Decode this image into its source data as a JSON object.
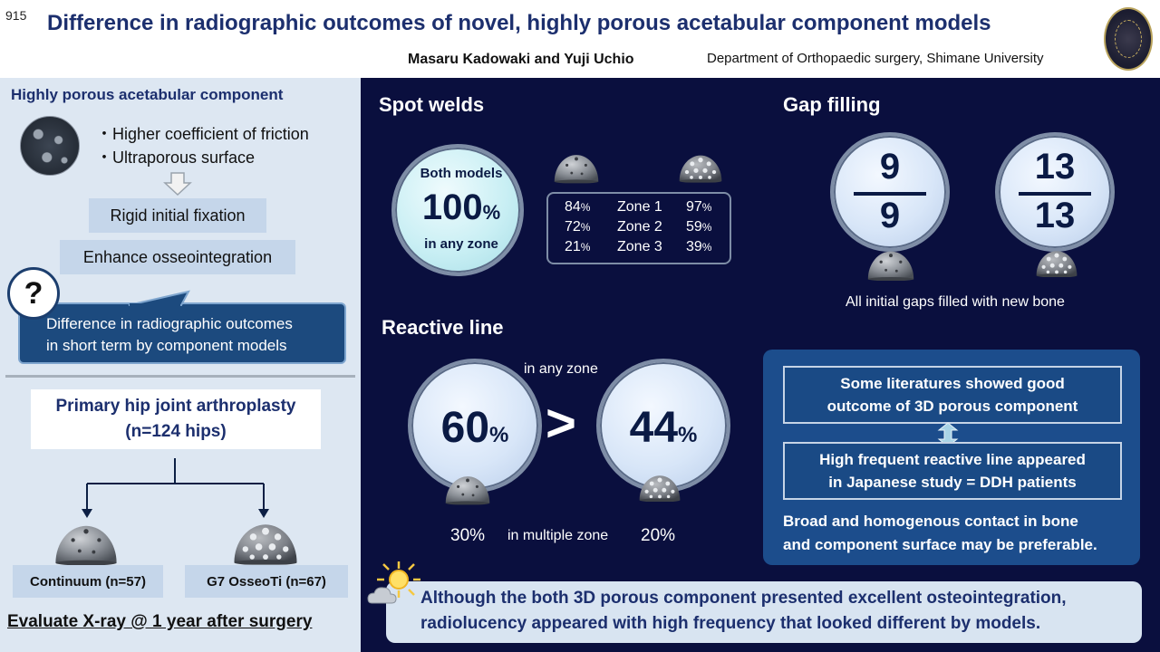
{
  "header": {
    "poster_number": "915",
    "title": "Difference in radiographic outcomes of novel, highly porous acetabular component models",
    "authors": "Masaru Kadowaki and Yuji Uchio",
    "affiliation": "Department of Orthopaedic surgery, Shimane University"
  },
  "left": {
    "heading": "Highly porous acetabular component",
    "features": [
      "・Higher coefficient of friction",
      "・Ultraporous surface"
    ],
    "fixation": "Rigid initial fixation",
    "osseo": "Enhance osseointegration",
    "question_mark": "?",
    "question_lines": [
      "Difference in radiographic outcomes",
      "in short term by component models"
    ],
    "study_lines": [
      "Primary hip joint arthroplasty",
      "(n=124 hips)"
    ],
    "groups": [
      "Continuum (n=57)",
      "G7 OsseoTi (n=67)"
    ],
    "evaluate": "Evaluate X-ray @ 1 year after surgery"
  },
  "spot_welds": {
    "heading": "Spot welds",
    "bubble_top": "Both models",
    "bubble_value": "100",
    "bubble_unit": "%",
    "bubble_bottom": "in any zone",
    "pct_unit": "%",
    "rows": [
      {
        "left": "84",
        "zone": "Zone 1",
        "right": "97"
      },
      {
        "left": "72",
        "zone": "Zone 2",
        "right": "59"
      },
      {
        "left": "21",
        "zone": "Zone 3",
        "right": "39"
      }
    ]
  },
  "gap_filling": {
    "heading": "Gap filling",
    "fractions": [
      {
        "num": "9",
        "den": "9"
      },
      {
        "num": "13",
        "den": "13"
      }
    ],
    "caption": "All initial gaps filled with new bone"
  },
  "reactive_line": {
    "heading": "Reactive line",
    "any_zone_label": "in any zone",
    "values": [
      "60",
      "44"
    ],
    "unit": "%",
    "comparator": ">",
    "multi_zone_label": "in multiple zone",
    "multi_values": [
      "30%",
      "20%"
    ]
  },
  "literature": {
    "box1": [
      "Some literatures showed good",
      "outcome of 3D porous component"
    ],
    "box2": [
      "High frequent reactive line appeared",
      "in Japanese study = DDH patients"
    ],
    "conclusion": [
      "Broad and homogenous contact in bone",
      "and component surface may be preferable."
    ]
  },
  "conclusion": {
    "lines": [
      "Although the both 3D porous component presented excellent osteointegration,",
      "radiolucency appeared with high frequency that looked different by models."
    ]
  },
  "icons": {
    "seal": "university-seal-icon",
    "arrow": "down-arrow-icon",
    "dome_solid": "solid-cup-icon",
    "dome_porous": "porous-cup-icon",
    "weather": "sun-cloud-icon"
  },
  "colors": {
    "title_blue": "#1c2f6e",
    "right_panel_bg": "#0a0f3e",
    "left_panel_bg": "#dde7f2",
    "callout_blue": "#1c4a7e",
    "literature_blue": "#1c4d8c"
  }
}
